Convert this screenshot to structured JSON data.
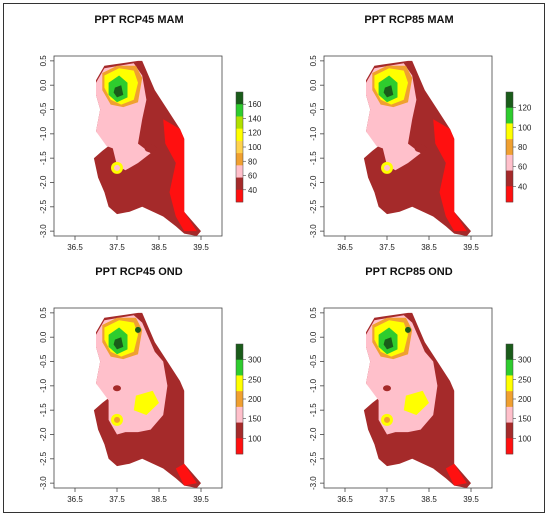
{
  "panels": [
    {
      "id": "rcp45-mam",
      "title": "PPT RCP45 MAM",
      "legend_ticks": [
        "160",
        "140",
        "120",
        "100",
        "80",
        "60",
        "40"
      ],
      "legend_colors": [
        "#1a5c1a",
        "#2ecc2e",
        "#b0e000",
        "#ffff00",
        "#ffd24d",
        "#f0a030",
        "#ffc0cb",
        "#a52a2a",
        "#ff1010"
      ]
    },
    {
      "id": "rcp85-mam",
      "title": "PPT RCP85 MAM",
      "legend_ticks": [
        "120",
        "100",
        "80",
        "60",
        "40"
      ],
      "legend_colors": [
        "#1a5c1a",
        "#2ecc2e",
        "#ffff00",
        "#f0a030",
        "#ffc0cb",
        "#a52a2a",
        "#ff1010"
      ]
    },
    {
      "id": "rcp45-ond",
      "title": "PPT RCP45 OND",
      "legend_ticks": [
        "300",
        "250",
        "200",
        "150",
        "100"
      ],
      "legend_colors": [
        "#1a5c1a",
        "#2ecc2e",
        "#ffff00",
        "#f0a030",
        "#ffc0cb",
        "#a52a2a",
        "#ff1010"
      ]
    },
    {
      "id": "rcp85-ond",
      "title": "PPT RCP85 OND",
      "legend_ticks": [
        "300",
        "250",
        "200",
        "150",
        "100"
      ],
      "legend_colors": [
        "#1a5c1a",
        "#2ecc2e",
        "#ffff00",
        "#f0a030",
        "#ffc0cb",
        "#a52a2a",
        "#ff1010"
      ]
    }
  ],
  "x_ticks": [
    "36.5",
    "37.5",
    "38.5",
    "39.5"
  ],
  "y_ticks": [
    "0.5",
    "0.0",
    "-0.5",
    "-1.0",
    "-1.5",
    "-2.0",
    "-2.5",
    "-3.0"
  ],
  "colors": {
    "dark_red": "#a52a2a",
    "red": "#ff1010",
    "pink": "#ffc0cb",
    "orange": "#f0a030",
    "yellow": "#ffff00",
    "green": "#2ecc2e",
    "dark_green": "#1a5c1a"
  }
}
